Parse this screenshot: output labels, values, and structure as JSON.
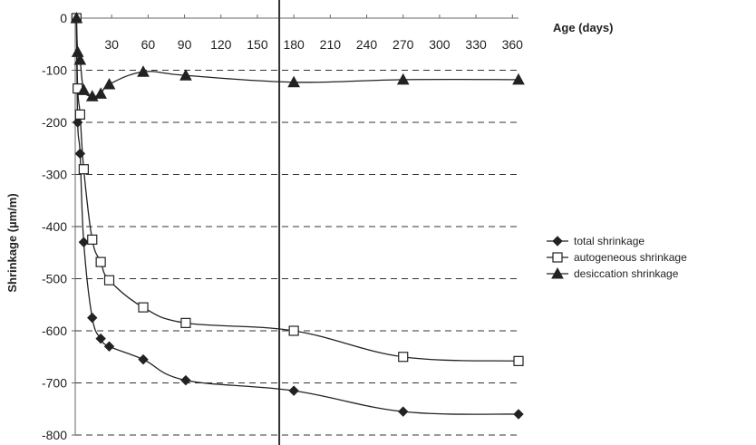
{
  "chart_data": {
    "type": "line",
    "title": "",
    "xlabel": "Age (days)",
    "ylabel": "Shrinkage (µm/m)",
    "xlim": [
      0,
      365
    ],
    "ylim": [
      -800,
      0
    ],
    "x_ticks": [
      0,
      30,
      60,
      90,
      120,
      150,
      180,
      210,
      240,
      270,
      300,
      330,
      360
    ],
    "y_ticks": [
      0,
      -100,
      -200,
      -300,
      -400,
      -500,
      -600,
      -700,
      -800
    ],
    "grid": "horizontal dashed",
    "reference_line_x": 168,
    "legend_position": "right",
    "series": [
      {
        "name": "total shrinkage",
        "marker": "diamond",
        "color": "#222222",
        "points": [
          [
            1,
            0
          ],
          [
            2,
            -200
          ],
          [
            4,
            -260
          ],
          [
            7,
            -430
          ],
          [
            14,
            -575
          ],
          [
            21,
            -615
          ],
          [
            28,
            -630
          ],
          [
            56,
            -655
          ],
          [
            91,
            -695
          ],
          [
            180,
            -715
          ],
          [
            270,
            -755
          ],
          [
            365,
            -760
          ]
        ]
      },
      {
        "name": "autogeneous shrinkage",
        "marker": "square-open",
        "color": "#222222",
        "points": [
          [
            1,
            0
          ],
          [
            2,
            -135
          ],
          [
            4,
            -185
          ],
          [
            7,
            -290
          ],
          [
            14,
            -425
          ],
          [
            21,
            -468
          ],
          [
            28,
            -503
          ],
          [
            56,
            -555
          ],
          [
            91,
            -585
          ],
          [
            180,
            -600
          ],
          [
            270,
            -650
          ],
          [
            365,
            -658
          ]
        ]
      },
      {
        "name": "desiccation shrinkage",
        "marker": "triangle",
        "color": "#222222",
        "points": [
          [
            1,
            0
          ],
          [
            2,
            -65
          ],
          [
            4,
            -80
          ],
          [
            7,
            -138
          ],
          [
            14,
            -150
          ],
          [
            21,
            -145
          ],
          [
            28,
            -127
          ],
          [
            56,
            -103
          ],
          [
            91,
            -110
          ],
          [
            180,
            -123
          ],
          [
            270,
            -118
          ],
          [
            365,
            -118
          ]
        ]
      }
    ]
  }
}
